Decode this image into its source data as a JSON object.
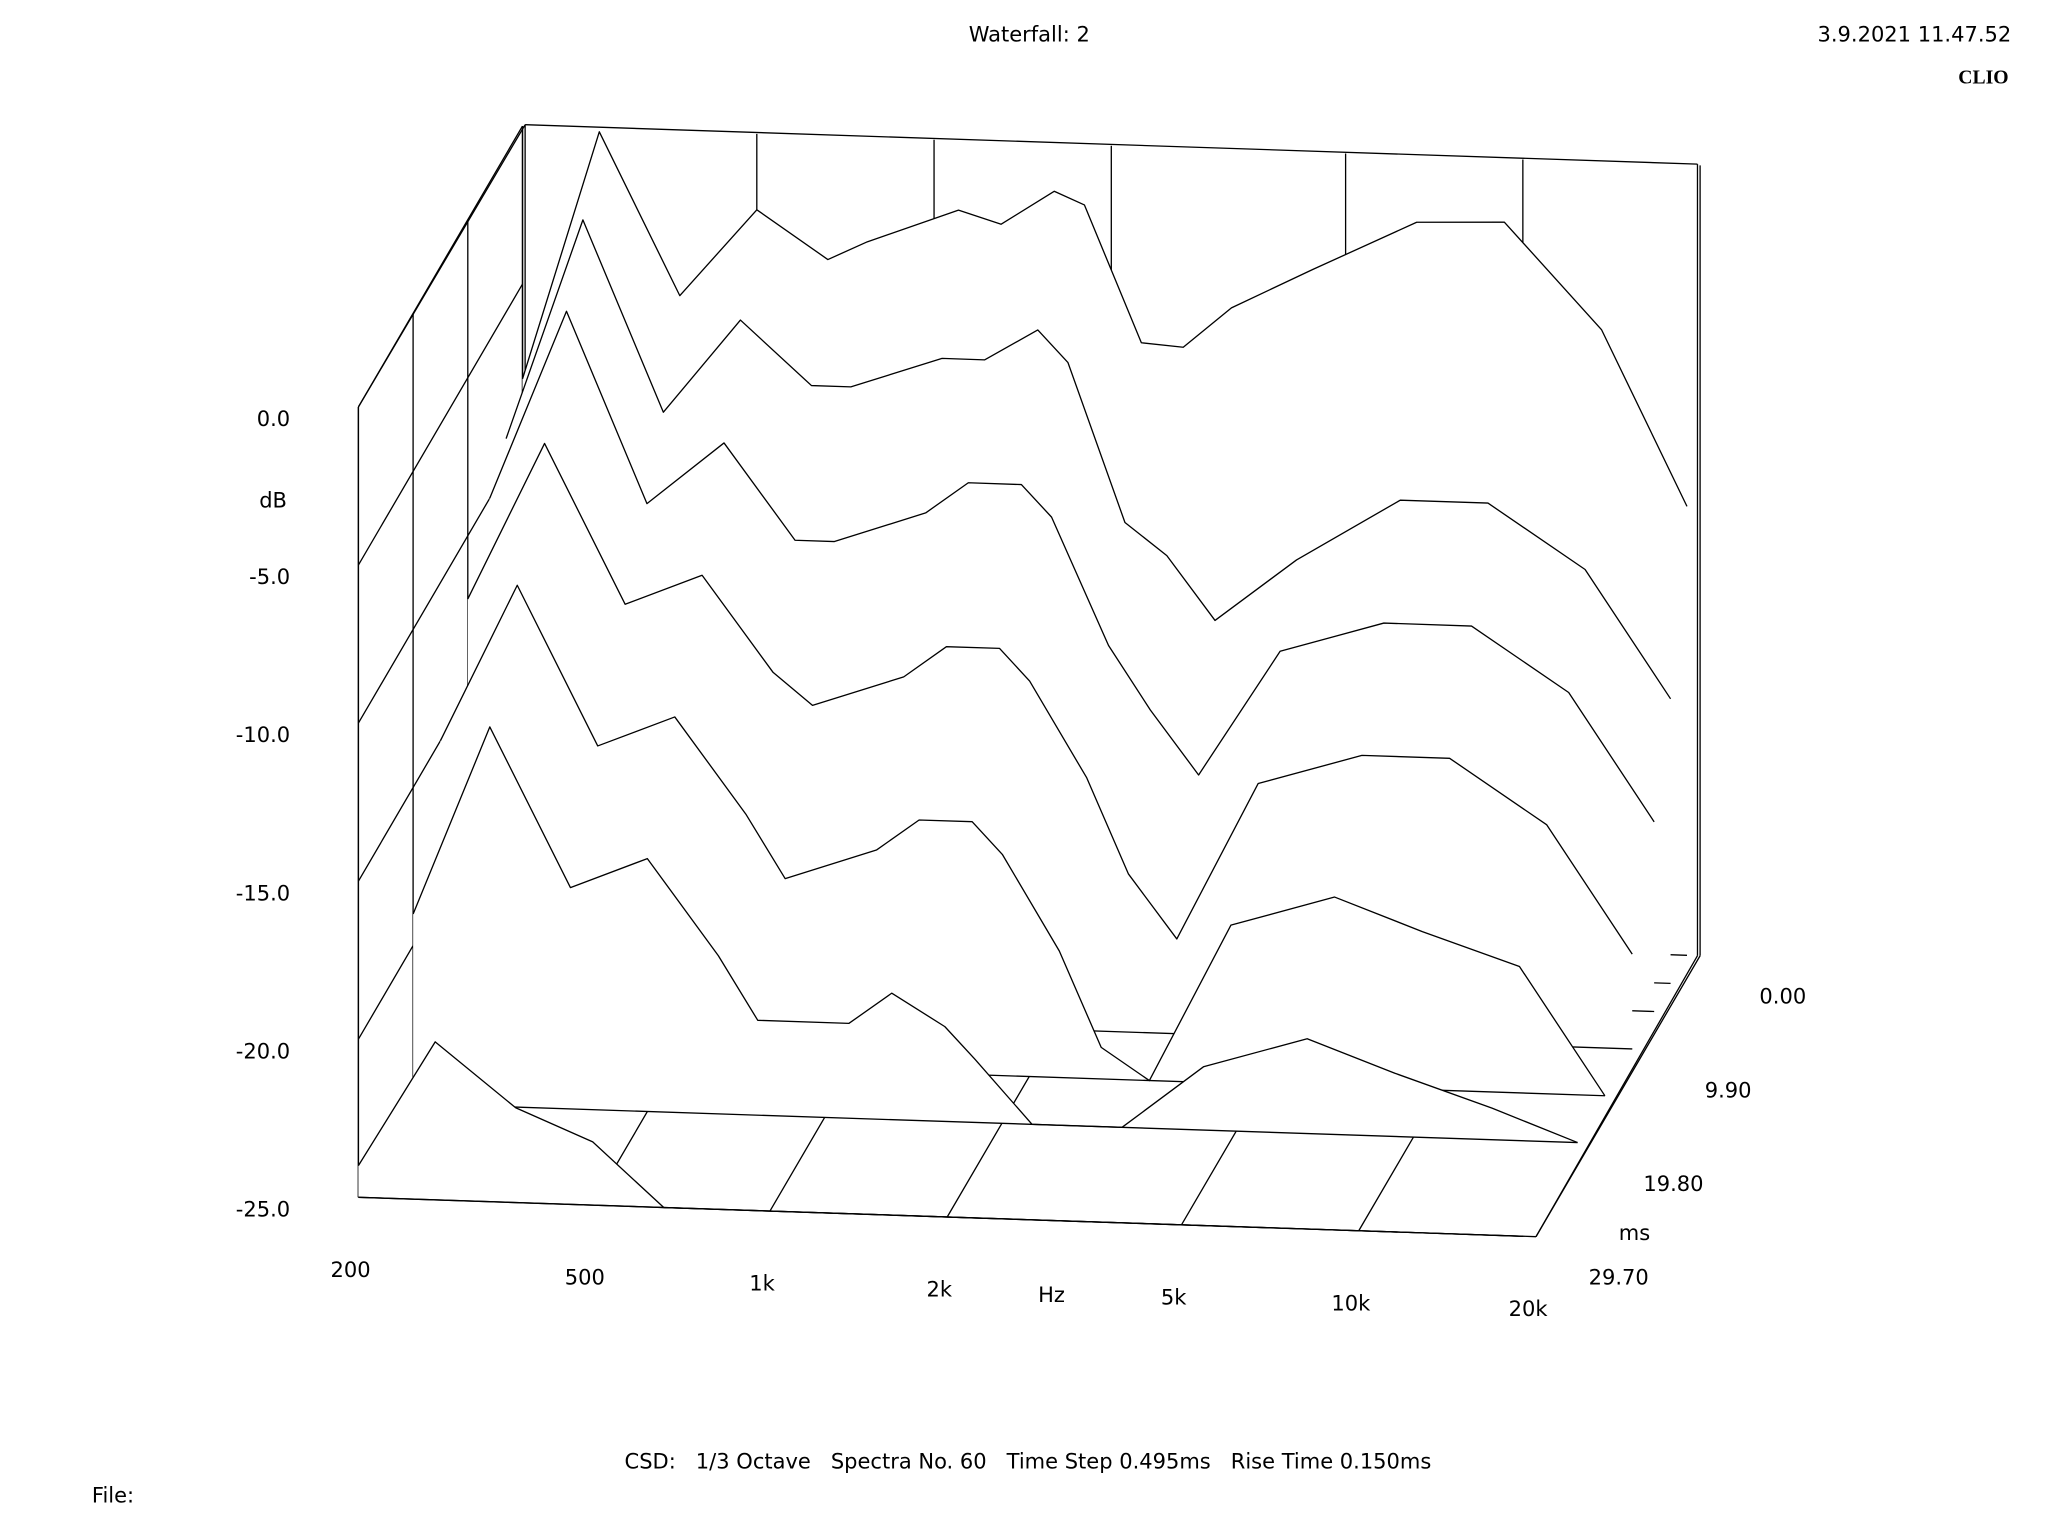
{
  "chart_data": {
    "type": "waterfall",
    "title": "Waterfall: 2",
    "timestamp": "3.9.2021 11.47.52",
    "brand": "CLIO",
    "xlabel": "Hz",
    "ylabel": "dB",
    "zlabel": "ms",
    "footer": "CSD:   1/3 Octave   Spectra No. 60   Time Step 0.495ms   Rise Time 0.150ms",
    "file_label": "File:",
    "log_x": true,
    "color": "#000000",
    "fill": "#ffffff",
    "xlim": [
      200,
      20000
    ],
    "xticks": [
      200,
      500,
      {
        "value": 1000,
        "label": "1k"
      },
      {
        "value": 2000,
        "label": "2k"
      },
      {
        "value": 5000,
        "label": "5k"
      },
      {
        "value": 10000,
        "label": "10k"
      },
      {
        "value": 20000,
        "label": "20k"
      }
    ],
    "ylim": [
      -25,
      0
    ],
    "yticks": [
      {
        "value": 0,
        "label": "0.0"
      },
      {
        "value": -5,
        "label": "-5.0"
      },
      {
        "value": -10,
        "label": "-10.0"
      },
      {
        "value": -15,
        "label": "-15.0"
      },
      {
        "value": -20,
        "label": "-20.0"
      },
      {
        "value": -25,
        "label": "-25.0"
      }
    ],
    "zlim": [
      0,
      29.7
    ],
    "zticks": [
      {
        "value": 0,
        "label": "0.00"
      },
      {
        "value": 9.9,
        "label": "9.90"
      },
      {
        "value": 19.8,
        "label": "19.80"
      },
      {
        "value": 29.7,
        "label": "29.70"
      }
    ],
    "x": [
      200,
      270,
      370,
      500,
      660,
      770,
      1100,
      1300,
      1600,
      1800,
      2250,
      2650,
      3200,
      4400,
      6600,
      9300,
      13600,
      19000
    ],
    "series": [
      {
        "time": 0,
        "values": [
          -8,
          -0.1,
          -5.2,
          -2.4,
          -3.9,
          -3.3,
          -2.2,
          -2.6,
          -1.5,
          -1.9,
          -6.2,
          -6.3,
          -5.0,
          -3.7,
          -2.1,
          -2.0,
          -5.3,
          -10.8
        ]
      },
      {
        "time": 2.97,
        "values": [
          -9,
          -2,
          -8,
          -5,
          -7,
          -7,
          -6,
          -6,
          -5,
          -6,
          -11,
          -12,
          -14,
          -12,
          -10,
          -10,
          -12,
          -16
        ]
      },
      {
        "time": 5.94,
        "values": [
          -10,
          -4,
          -10,
          -8,
          -11,
          -11,
          -10,
          -9,
          -9,
          -10,
          -14,
          -16,
          -18,
          -14,
          -13,
          -13,
          -15,
          -19
        ]
      },
      {
        "time": 9.9,
        "values": [
          -12,
          -7,
          -12,
          -11,
          -14,
          -15,
          -14,
          -13,
          -13,
          -14,
          -17,
          -20,
          -22,
          -17,
          -16,
          -16,
          -18,
          -22
        ]
      },
      {
        "time": 14.85,
        "values": [
          -15,
          -10,
          -15,
          -14,
          -17,
          -19,
          -18,
          -17,
          -17,
          -18,
          -21,
          -24,
          -25,
          -20,
          -19,
          -20,
          -21,
          -25
        ]
      },
      {
        "time": 19.8,
        "values": [
          -19,
          -13,
          -18,
          -17,
          -20,
          -22,
          -22,
          -21,
          -22,
          -23,
          -25,
          -25,
          -25,
          -23,
          -22,
          -23,
          -24,
          -25
        ]
      },
      {
        "time": 29.7,
        "values": [
          -24,
          -20,
          -22,
          -23,
          -25,
          -25,
          -25,
          -25,
          -25,
          -25,
          -25,
          -25,
          -25,
          -25,
          -25,
          -25,
          -25,
          -25
        ]
      }
    ]
  }
}
